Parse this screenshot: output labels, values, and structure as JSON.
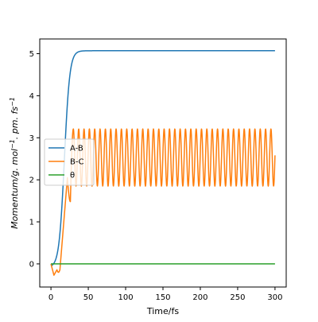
{
  "chart_data": {
    "type": "line",
    "title": "",
    "xlabel": "Time/fs",
    "ylabel_parts": {
      "main": "Momentum/g. mol",
      "exp1": "−1",
      "mid": ". pm. fs",
      "exp2": "−1"
    },
    "xlim": [
      -15,
      315
    ],
    "ylim": [
      -0.55,
      5.35
    ],
    "x_ticks": [
      0,
      50,
      100,
      150,
      200,
      250,
      300
    ],
    "x_tick_labels": [
      "0",
      "50",
      "100",
      "150",
      "200",
      "250",
      "300"
    ],
    "y_ticks": [
      0,
      1,
      2,
      3,
      4,
      5
    ],
    "y_tick_labels": [
      "0",
      "1",
      "2",
      "3",
      "4",
      "5"
    ],
    "grid": false,
    "legend_position": "center-left",
    "series": [
      {
        "name": "A-B",
        "color": "#1f77b4",
        "model": {
          "kind": "sigmoid_rise",
          "t_start": 0,
          "start": -0.05,
          "end": 5.07,
          "midpoint": 18,
          "rate": 0.28,
          "t_end": 300
        }
      },
      {
        "name": "B-C",
        "color": "#ff7f0e",
        "model": {
          "kind": "damped_start_oscillation",
          "t_start": 0,
          "t_end": 300,
          "dip_min": -0.27,
          "dip_time": 4,
          "second_dip": -0.15,
          "second_dip_time": 12,
          "rise_end_time": 30,
          "center": 2.53,
          "amplitude": 0.68,
          "period": 7.15,
          "min": 1.85,
          "max": 3.21,
          "early_min": 1.48
        }
      },
      {
        "name": "θ",
        "color": "#2ca02c",
        "model": {
          "kind": "constant",
          "value": 0,
          "t_start": 0,
          "t_end": 300
        }
      }
    ]
  }
}
